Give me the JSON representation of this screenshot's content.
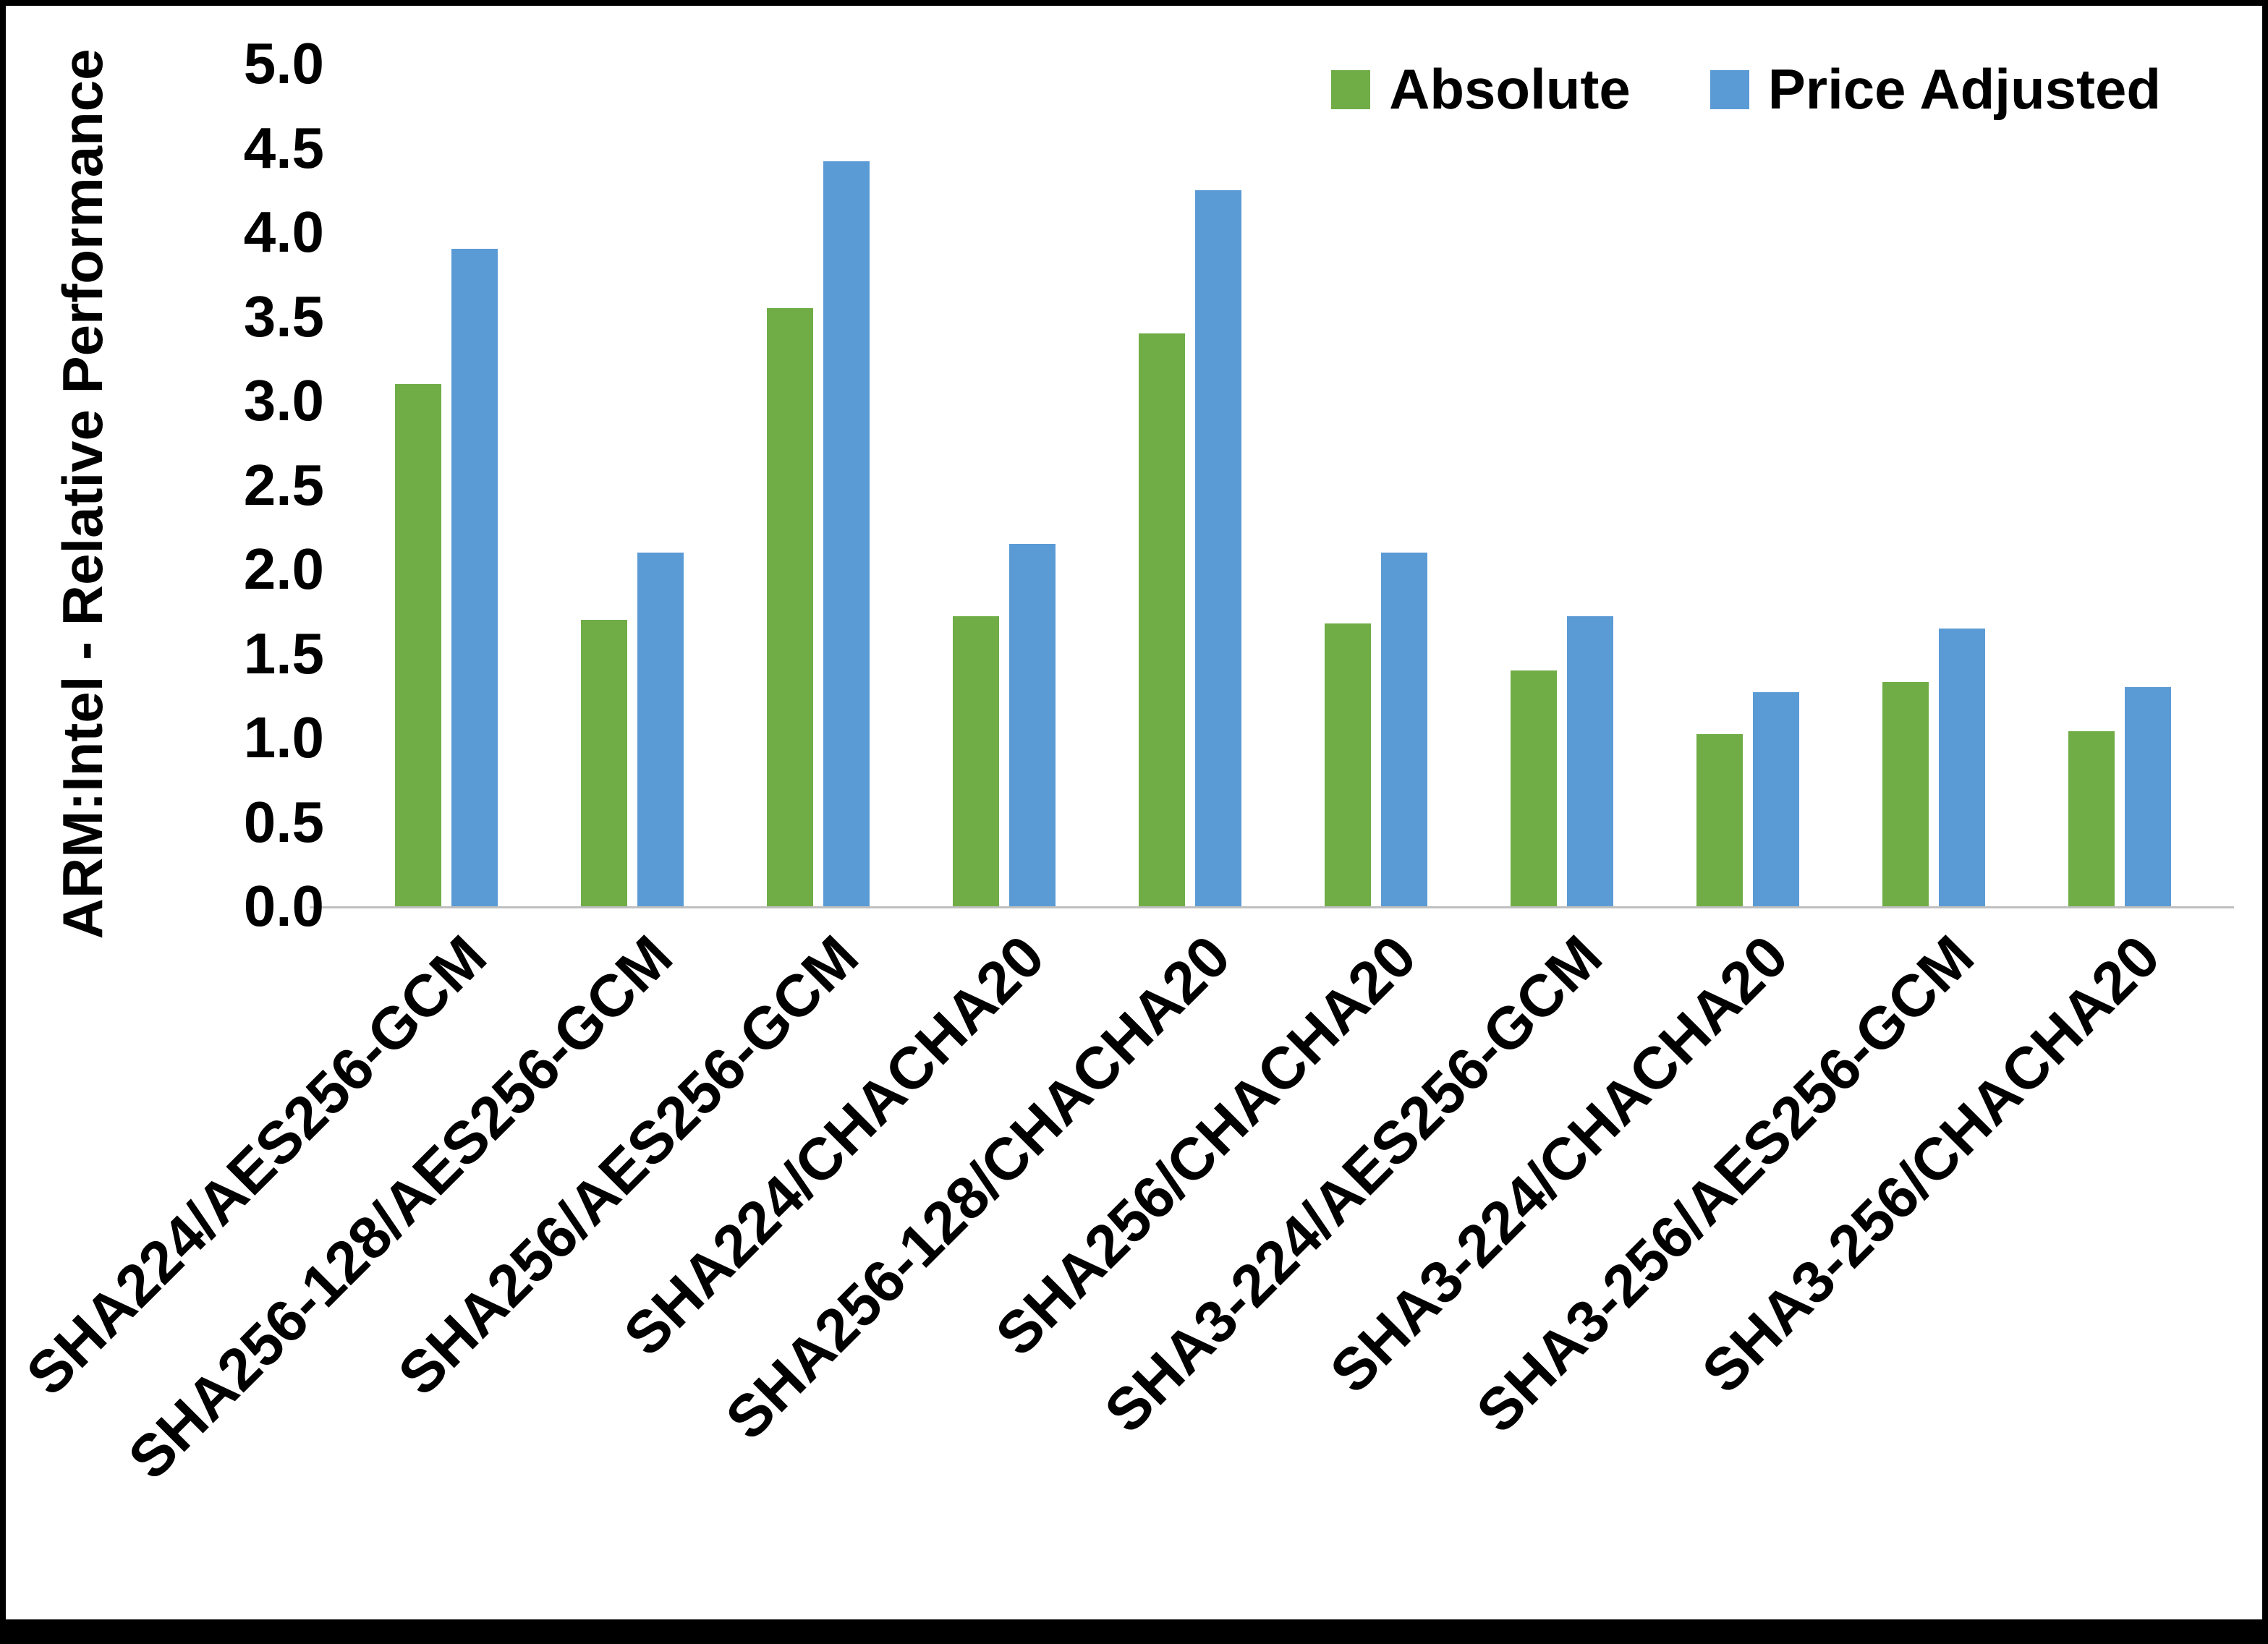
{
  "page": {
    "background": "#ffffff",
    "frame_color": "#000000"
  },
  "chart_data": {
    "type": "bar",
    "title": "",
    "xlabel": "",
    "ylabel": "ARM:Intel - Relative Performance",
    "ylim": [
      0,
      5
    ],
    "ytick_step": 0.5,
    "yticks": [
      "0.0",
      "0.5",
      "1.0",
      "1.5",
      "2.0",
      "2.5",
      "3.0",
      "3.5",
      "4.0",
      "4.5",
      "5.0"
    ],
    "grid": false,
    "legend_position": "top-right",
    "axis_line_color": "#bfbfbf",
    "categories": [
      "SHA224/AES256-GCM",
      "SHA256-128/AES256-GCM",
      "SHA256/AES256-GCM",
      "SHA224/CHACHA20",
      "SHA256-128/CHACHA20",
      "SHA256/CHACHA20",
      "SHA3-224/AES256-GCM",
      "SHA3-224/CHACHA20",
      "SHA3-256/AES256-GCM",
      "SHA3-256/CHACHA20"
    ],
    "series": [
      {
        "name": "Absolute",
        "color": "#70AD47",
        "values": [
          3.1,
          1.7,
          3.55,
          1.72,
          3.4,
          1.68,
          1.4,
          1.02,
          1.33,
          1.04
        ]
      },
      {
        "name": "Price Adjusted",
        "color": "#5B9BD5",
        "values": [
          3.9,
          2.1,
          4.42,
          2.15,
          4.25,
          2.1,
          1.72,
          1.27,
          1.65,
          1.3
        ]
      }
    ]
  }
}
